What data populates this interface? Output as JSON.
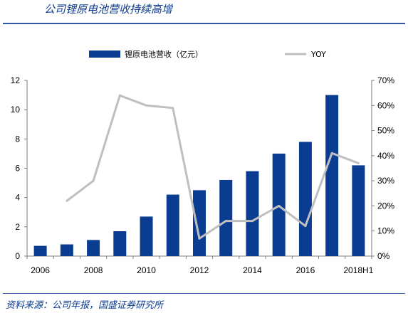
{
  "header": {
    "title": "公司锂原电池营收持续高增"
  },
  "footer": {
    "source": "资料来源：公司年报，国盛证券研究所"
  },
  "colors": {
    "bar": "#0a3d91",
    "line": "#bfbfbf",
    "axis": "#7f7f7f"
  },
  "chart_data": {
    "type": "bar",
    "categories": [
      "2006",
      "2007",
      "2008",
      "2009",
      "2010",
      "2011",
      "2012",
      "2013",
      "2014",
      "2015",
      "2016",
      "2017",
      "2018H1"
    ],
    "x_tick_labels": [
      "2006",
      "",
      "2008",
      "",
      "2010",
      "",
      "2012",
      "",
      "2014",
      "",
      "2016",
      "",
      "2018H1"
    ],
    "series": [
      {
        "name": "锂原电池营收（亿元）",
        "type": "bar",
        "axis": "left",
        "values": [
          0.7,
          0.8,
          1.1,
          1.7,
          2.7,
          4.2,
          4.5,
          5.2,
          5.8,
          7.0,
          7.8,
          11.0,
          6.2
        ]
      },
      {
        "name": "YOY",
        "type": "line",
        "axis": "right",
        "values": [
          null,
          22,
          30,
          64,
          60,
          59,
          7,
          14,
          14,
          20,
          12,
          41,
          37
        ]
      }
    ],
    "y_left": {
      "min": 0,
      "max": 12,
      "ticks": [
        0,
        2,
        4,
        6,
        8,
        10,
        12
      ],
      "tick_labels": [
        "0",
        "2",
        "4",
        "6",
        "8",
        "10",
        "12"
      ]
    },
    "y_right": {
      "min": 0,
      "max": 70,
      "ticks": [
        0,
        10,
        20,
        30,
        40,
        50,
        60,
        70
      ],
      "tick_labels": [
        "0%",
        "10%",
        "20%",
        "30%",
        "40%",
        "50%",
        "60%",
        "70%"
      ]
    },
    "grid": false,
    "legend_position": "top"
  }
}
